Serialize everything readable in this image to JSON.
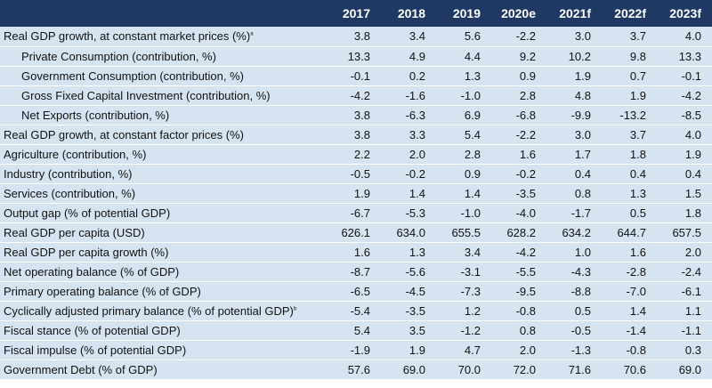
{
  "table": {
    "columns": [
      "2017",
      "2018",
      "2019",
      "2020e",
      "2021f",
      "2022f",
      "2023f"
    ],
    "rows": [
      {
        "label": "Real GDP growth, at constant market prices (%)",
        "note": "a",
        "indent": false,
        "values": [
          "3.8",
          "3.4",
          "5.6",
          "-2.2",
          "3.0",
          "3.7",
          "4.0"
        ]
      },
      {
        "label": "Private Consumption (contribution, %)",
        "indent": true,
        "values": [
          "13.3",
          "4.9",
          "4.4",
          "9.2",
          "10.2",
          "9.8",
          "13.3"
        ]
      },
      {
        "label": "Government Consumption (contribution, %)",
        "indent": true,
        "values": [
          "-0.1",
          "0.2",
          "1.3",
          "0.9",
          "1.9",
          "0.7",
          "-0.1"
        ]
      },
      {
        "label": "Gross Fixed Capital Investment (contribution, %)",
        "indent": true,
        "values": [
          "-4.2",
          "-1.6",
          "-1.0",
          "2.8",
          "4.8",
          "1.9",
          "-4.2"
        ]
      },
      {
        "label": "Net Exports (contribution, %)",
        "indent": true,
        "values": [
          "3.8",
          "-6.3",
          "6.9",
          "-6.8",
          "-9.9",
          "-13.2",
          "-8.5"
        ]
      },
      {
        "label": "Real GDP growth, at constant factor prices (%)",
        "indent": false,
        "values": [
          "3.8",
          "3.3",
          "5.4",
          "-2.2",
          "3.0",
          "3.7",
          "4.0"
        ]
      },
      {
        "label": "Agriculture (contribution, %)",
        "indent": false,
        "values": [
          "2.2",
          "2.0",
          "2.8",
          "1.6",
          "1.7",
          "1.8",
          "1.9"
        ]
      },
      {
        "label": "Industry (contribution, %)",
        "indent": false,
        "values": [
          "-0.5",
          "-0.2",
          "0.9",
          "-0.2",
          "0.4",
          "0.4",
          "0.4"
        ]
      },
      {
        "label": "Services (contribution, %)",
        "indent": false,
        "values": [
          "1.9",
          "1.4",
          "1.4",
          "-3.5",
          "0.8",
          "1.3",
          "1.5"
        ]
      },
      {
        "label": "Output gap (% of potential GDP)",
        "indent": false,
        "values": [
          "-6.7",
          "-5.3",
          "-1.0",
          "-4.0",
          "-1.7",
          "0.5",
          "1.8"
        ]
      },
      {
        "label": "Real GDP per capita (USD)",
        "indent": false,
        "values": [
          "626.1",
          "634.0",
          "655.5",
          "628.2",
          "634.2",
          "644.7",
          "657.5"
        ]
      },
      {
        "label": "Real GDP per capita growth (%)",
        "indent": false,
        "values": [
          "1.6",
          "1.3",
          "3.4",
          "-4.2",
          "1.0",
          "1.6",
          "2.0"
        ]
      },
      {
        "label": "Net operating balance (% of GDP)",
        "indent": false,
        "values": [
          "-8.7",
          "-5.6",
          "-3.1",
          "-5.5",
          "-4.3",
          "-2.8",
          "-2.4"
        ]
      },
      {
        "label": "Primary operating balance (% of GDP)",
        "indent": false,
        "values": [
          "-6.5",
          "-4.5",
          "-7.3",
          "-9.5",
          "-8.8",
          "-7.0",
          "-6.1"
        ]
      },
      {
        "label": "Cyclically adjusted primary balance (% of potential GDP)",
        "note": "b",
        "indent": false,
        "values": [
          "-5.4",
          "-3.5",
          "1.2",
          "-0.8",
          "0.5",
          "1.4",
          "1.1"
        ]
      },
      {
        "label": "Fiscal stance (% of potential GDP)",
        "indent": false,
        "values": [
          "5.4",
          "3.5",
          "-1.2",
          "0.8",
          "-0.5",
          "-1.4",
          "-1.1"
        ]
      },
      {
        "label": "Fiscal impulse (% of potential GDP)",
        "indent": false,
        "values": [
          "-1.9",
          "1.9",
          "4.7",
          "2.0",
          "-1.3",
          "-0.8",
          "0.3"
        ]
      },
      {
        "label": "Government Debt (% of GDP)",
        "indent": false,
        "values": [
          "57.6",
          "69.0",
          "70.0",
          "72.0",
          "71.6",
          "70.6",
          "69.0"
        ]
      }
    ]
  }
}
